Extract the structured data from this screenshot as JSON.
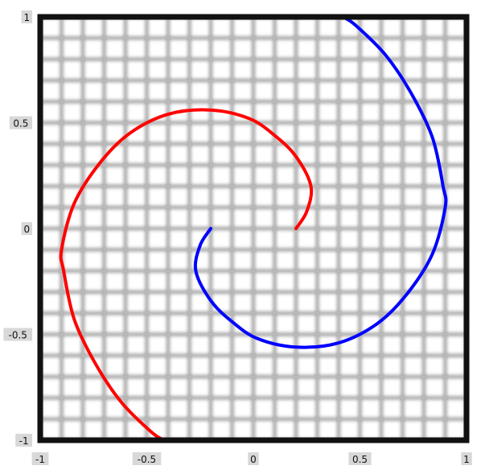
{
  "chart_data": {
    "type": "line",
    "title": "",
    "xlabel": "",
    "ylabel": "",
    "xlim": [
      -1,
      1
    ],
    "ylim": [
      -1,
      1
    ],
    "grid": true,
    "x_ticks": [
      -1,
      -0.5,
      0,
      0.5,
      1
    ],
    "y_ticks": [
      -1,
      -0.5,
      0,
      0.5,
      1
    ],
    "x_tick_labels": [
      "-1",
      "-0.5",
      "0",
      "0.5",
      "1"
    ],
    "y_tick_labels": [
      "-1",
      "-0.5",
      "0",
      "0.5",
      "1"
    ],
    "series": [
      {
        "color": "#ff0000",
        "x": [
          0.2,
          0.25,
          0.27,
          0.2,
          0.1,
          -0.02,
          -0.2,
          -0.4,
          -0.58,
          -0.72,
          -0.84,
          -0.9,
          -0.89,
          -0.84,
          -0.74,
          -0.62,
          -0.48,
          -0.42
        ],
        "y": [
          0.0,
          0.08,
          0.2,
          0.34,
          0.44,
          0.52,
          0.56,
          0.54,
          0.45,
          0.31,
          0.12,
          -0.1,
          -0.2,
          -0.43,
          -0.64,
          -0.82,
          -0.96,
          -1.0
        ]
      },
      {
        "color": "#0000ff",
        "x": [
          -0.2,
          -0.25,
          -0.27,
          -0.2,
          -0.1,
          0.02,
          0.2,
          0.4,
          0.58,
          0.72,
          0.84,
          0.9,
          0.89,
          0.84,
          0.74,
          0.62,
          0.48,
          0.42
        ],
        "y": [
          0.0,
          -0.08,
          -0.2,
          -0.34,
          -0.44,
          -0.52,
          -0.56,
          -0.54,
          -0.45,
          -0.31,
          -0.12,
          0.1,
          0.2,
          0.43,
          0.64,
          0.82,
          0.96,
          1.0
        ]
      }
    ]
  }
}
